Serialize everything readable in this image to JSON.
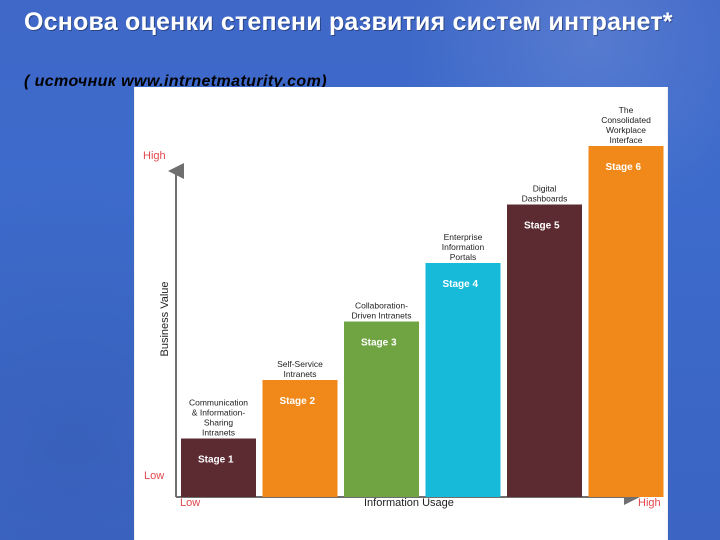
{
  "slide": {
    "title": "Основа оценки степени развития систем интранет*",
    "source": "( источник  www.intrnetmaturity.com)"
  },
  "colors": {
    "background": "#3d6bcc",
    "title": "#ffffff",
    "source": "#000000",
    "axis": "#6f6f6f",
    "tick_text": "#e0484d",
    "bar_palette": [
      "#5b2b31",
      "#f1891a",
      "#70a443",
      "#18bad9",
      "#5b2b31",
      "#f1891a"
    ]
  },
  "chart_data": {
    "type": "bar",
    "x": {
      "label": "Information Usage",
      "low_label": "Low",
      "high_label": "High"
    },
    "y": {
      "label": "Business Value",
      "low_label": "Low",
      "high_label": "High"
    },
    "ylim": [
      0,
      6
    ],
    "grid": false,
    "legend": "none",
    "bars": [
      {
        "stage": "Stage 1",
        "name_lines": [
          "Communication",
          "& Information-",
          "Sharing",
          "Intranets"
        ],
        "value": 1,
        "color": "#5b2b31"
      },
      {
        "stage": "Stage 2",
        "name_lines": [
          "Self-Service",
          "Intranets"
        ],
        "value": 2,
        "color": "#f1891a"
      },
      {
        "stage": "Stage 3",
        "name_lines": [
          "Collaboration-",
          "Driven Intranets"
        ],
        "value": 3,
        "color": "#70a443"
      },
      {
        "stage": "Stage 4",
        "name_lines": [
          "Enterprise",
          "Information",
          "Portals"
        ],
        "value": 4,
        "color": "#18bad9"
      },
      {
        "stage": "Stage 5",
        "name_lines": [
          "Digital",
          "Dashboards"
        ],
        "value": 5,
        "color": "#5b2b31"
      },
      {
        "stage": "Stage 6",
        "name_lines": [
          "The",
          "Consolidated",
          "Workplace",
          "Interface"
        ],
        "value": 6,
        "color": "#f1891a"
      }
    ]
  }
}
